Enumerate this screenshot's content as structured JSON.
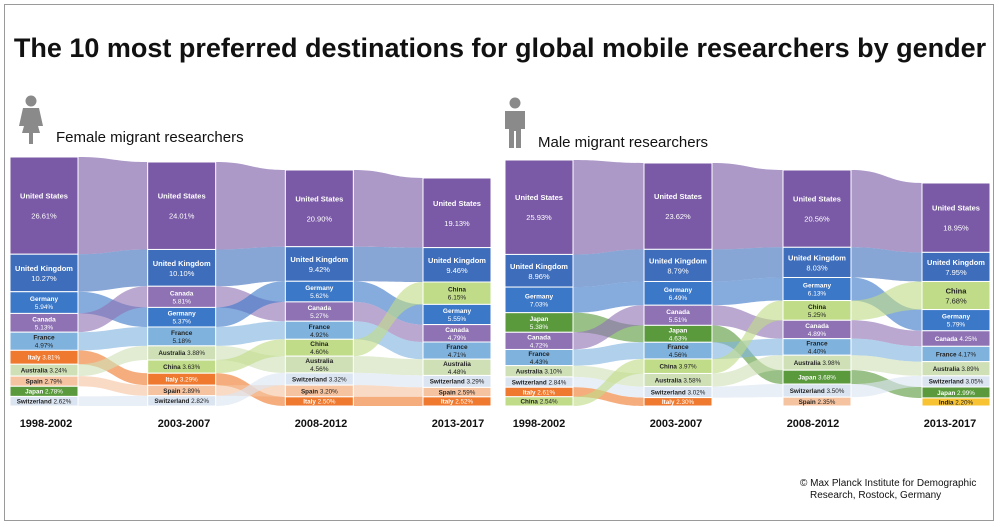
{
  "title": "The 10 most preferred destinations for global mobile researchers by gender",
  "credit": [
    "© Max Planck Institute for Demographic",
    "Research, Rostock, Germany"
  ],
  "icons": {
    "female": "female-person-icon",
    "male": "male-person-icon"
  },
  "colors": {
    "United States": "#7a5aa6",
    "United Kingdom": "#3e6dbb",
    "Germany": "#3c78c8",
    "Canada": "#8f72b4",
    "France": "#7fb3de",
    "Italy": "#ef7a2f",
    "Australia": "#cfe0b6",
    "Spain": "#f6c3a0",
    "Japan": "#5a9a3c",
    "Switzerland": "#dbe5f2",
    "China": "#c0dc88",
    "India": "#f7c332"
  },
  "chart_data": [
    {
      "type": "sankey",
      "title": "Female migrant researchers",
      "periods": [
        "1998-2002",
        "2003-2007",
        "2008-2012",
        "2013-2017"
      ],
      "columns": [
        [
          [
            "United States",
            "26.61%"
          ],
          [
            "United Kingdom",
            "10.27%"
          ],
          [
            "Germany",
            "5.94%"
          ],
          [
            "Canada",
            "5.13%"
          ],
          [
            "France",
            "4.97%"
          ],
          [
            "Italy",
            "3.81%"
          ],
          [
            "Australia",
            "3.24%"
          ],
          [
            "Spain",
            "2.79%"
          ],
          [
            "Japan",
            "2.78%"
          ],
          [
            "Switzerland",
            "2.62%"
          ]
        ],
        [
          [
            "United States",
            "24.01%"
          ],
          [
            "United Kingdom",
            "10.10%"
          ],
          [
            "Canada",
            "5.81%"
          ],
          [
            "Germany",
            "5.37%"
          ],
          [
            "France",
            "5.18%"
          ],
          [
            "Australia",
            "3.88%"
          ],
          [
            "China",
            "3.63%"
          ],
          [
            "Italy",
            "3.29%"
          ],
          [
            "Spain",
            "2.89%"
          ],
          [
            "Switzerland",
            "2.82%"
          ]
        ],
        [
          [
            "United States",
            "20.90%"
          ],
          [
            "United Kingdom",
            "9.42%"
          ],
          [
            "Germany",
            "5.62%"
          ],
          [
            "Canada",
            "5.27%"
          ],
          [
            "France",
            "4.92%"
          ],
          [
            "China",
            "4.60%"
          ],
          [
            "Australia",
            "4.56%"
          ],
          [
            "Switzerland",
            "3.32%"
          ],
          [
            "Spain",
            "3.20%"
          ],
          [
            "Italy",
            "2.50%"
          ]
        ],
        [
          [
            "United States",
            "19.13%"
          ],
          [
            "United Kingdom",
            "9.46%"
          ],
          [
            "China",
            "6.15%"
          ],
          [
            "Germany",
            "5.55%"
          ],
          [
            "Canada",
            "4.79%"
          ],
          [
            "France",
            "4.71%"
          ],
          [
            "Australia",
            "4.48%"
          ],
          [
            "Switzerland",
            "3.29%"
          ],
          [
            "Spain",
            "2.59%"
          ],
          [
            "Italy",
            "2.52%"
          ]
        ]
      ]
    },
    {
      "type": "sankey",
      "title": "Male migrant researchers",
      "periods": [
        "1998-2002",
        "2003-2007",
        "2008-2012",
        "2013-2017"
      ],
      "columns": [
        [
          [
            "United States",
            "25.93%"
          ],
          [
            "United Kingdom",
            "8.96%"
          ],
          [
            "Germany",
            "7.03%"
          ],
          [
            "Japan",
            "5.38%"
          ],
          [
            "Canada",
            "4.72%"
          ],
          [
            "France",
            "4.43%"
          ],
          [
            "Australia",
            "3.10%"
          ],
          [
            "Switzerland",
            "2.84%"
          ],
          [
            "Italy",
            "2.61%"
          ],
          [
            "China",
            "2.54%"
          ]
        ],
        [
          [
            "United States",
            "23.62%"
          ],
          [
            "United Kingdom",
            "8.79%"
          ],
          [
            "Germany",
            "6.49%"
          ],
          [
            "Canada",
            "5.51%"
          ],
          [
            "Japan",
            "4.63%"
          ],
          [
            "France",
            "4.56%"
          ],
          [
            "China",
            "3.97%"
          ],
          [
            "Australia",
            "3.58%"
          ],
          [
            "Switzerland",
            "3.02%"
          ],
          [
            "Italy",
            "2.30%"
          ]
        ],
        [
          [
            "United States",
            "20.56%"
          ],
          [
            "United Kingdom",
            "8.03%"
          ],
          [
            "Germany",
            "6.13%"
          ],
          [
            "China",
            "5.25%"
          ],
          [
            "Canada",
            "4.89%"
          ],
          [
            "France",
            "4.40%"
          ],
          [
            "Australia",
            "3.98%"
          ],
          [
            "Japan",
            "3.68%"
          ],
          [
            "Switzerland",
            "3.50%"
          ],
          [
            "Spain",
            "2.35%"
          ]
        ],
        [
          [
            "United States",
            "18.95%"
          ],
          [
            "United Kingdom",
            "7.95%"
          ],
          [
            "China",
            "7.68%"
          ],
          [
            "Germany",
            "5.79%"
          ],
          [
            "Canada",
            "4.25%"
          ],
          [
            "France",
            "4.17%"
          ],
          [
            "Australia",
            "3.89%"
          ],
          [
            "Switzerland",
            "3.05%"
          ],
          [
            "Japan",
            "2.99%"
          ],
          [
            "India",
            "2.20%"
          ]
        ]
      ]
    }
  ]
}
